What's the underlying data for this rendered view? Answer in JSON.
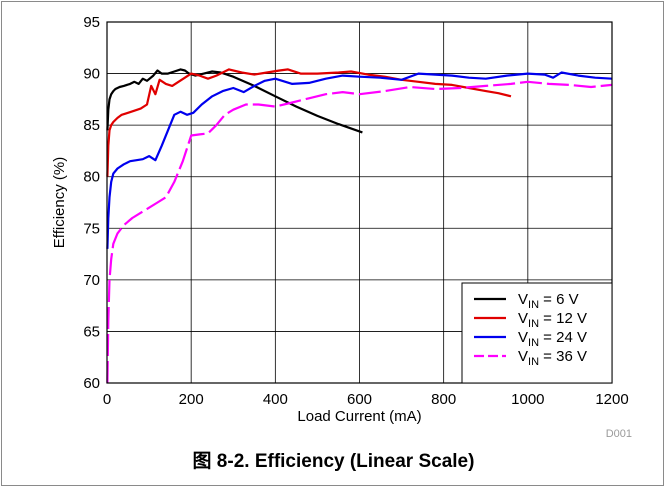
{
  "caption": "图 8-2. Efficiency (Linear Scale)",
  "figure_code": "D001",
  "chart_data": {
    "type": "line",
    "xlabel": "Load Current (mA)",
    "ylabel": "Efficiency (%)",
    "xlim": [
      0,
      1200
    ],
    "ylim": [
      60,
      95
    ],
    "xticks": [
      0,
      200,
      400,
      600,
      800,
      1000,
      1200
    ],
    "yticks": [
      60,
      65,
      70,
      75,
      80,
      85,
      90,
      95
    ],
    "grid": true,
    "legend_position": "bottom-right",
    "series": [
      {
        "name": "VIN = 6 V",
        "legend": {
          "main": "V",
          "sub": "IN",
          "rest": " = 6 V"
        },
        "color": "#000000",
        "dash": "solid",
        "x": [
          1,
          3,
          6,
          10,
          15,
          20,
          30,
          40,
          55,
          65,
          75,
          85,
          95,
          110,
          120,
          130,
          145,
          160,
          175,
          185,
          195,
          210,
          230,
          250,
          270,
          300,
          350,
          400,
          450,
          500,
          550,
          607
        ],
        "y": [
          84.5,
          86.5,
          87.5,
          88,
          88.3,
          88.5,
          88.7,
          88.8,
          89.0,
          89.2,
          89.0,
          89.5,
          89.3,
          89.8,
          90.3,
          90.0,
          90.0,
          90.2,
          90.4,
          90.3,
          90.0,
          89.8,
          90.0,
          90.2,
          90.1,
          89.7,
          88.8,
          87.8,
          86.8,
          85.9,
          85.1,
          84.3
        ]
      },
      {
        "name": "VIN = 12 V",
        "legend": {
          "main": "V",
          "sub": "IN",
          "rest": " = 12 V"
        },
        "color": "#e00000",
        "dash": "solid",
        "x": [
          1,
          3,
          6,
          10,
          15,
          25,
          35,
          50,
          65,
          80,
          95,
          105,
          115,
          125,
          140,
          155,
          170,
          185,
          200,
          220,
          240,
          260,
          290,
          320,
          350,
          380,
          410,
          430,
          460,
          500,
          550,
          580,
          620,
          660,
          700,
          740,
          780,
          820,
          860,
          900,
          930,
          960
        ],
        "y": [
          80,
          83,
          84.5,
          85,
          85.3,
          85.7,
          86.0,
          86.2,
          86.4,
          86.6,
          87.0,
          88.8,
          88.0,
          89.4,
          89.0,
          88.8,
          89.2,
          89.6,
          90.0,
          89.8,
          89.5,
          89.8,
          90.4,
          90.1,
          89.9,
          90.1,
          90.3,
          90.4,
          90.0,
          90.0,
          90.1,
          90.2,
          89.9,
          89.7,
          89.4,
          89.2,
          89.0,
          88.9,
          88.6,
          88.3,
          88.1,
          87.8
        ]
      },
      {
        "name": "VIN = 24 V",
        "legend": {
          "main": "V",
          "sub": "IN",
          "rest": " = 24 V"
        },
        "color": "#0000ee",
        "dash": "solid",
        "x": [
          1,
          3,
          6,
          10,
          15,
          25,
          40,
          55,
          70,
          85,
          100,
          115,
          130,
          145,
          160,
          175,
          190,
          205,
          225,
          250,
          275,
          300,
          325,
          350,
          375,
          400,
          440,
          480,
          520,
          560,
          600,
          650,
          700,
          740,
          780,
          820,
          860,
          900,
          950,
          1000,
          1040,
          1060,
          1080,
          1120,
          1160,
          1200
        ],
        "y": [
          73,
          76,
          78,
          79.5,
          80.3,
          80.8,
          81.2,
          81.5,
          81.6,
          81.7,
          82.0,
          81.6,
          83.0,
          84.5,
          86.0,
          86.3,
          86.0,
          86.2,
          87.0,
          87.8,
          88.3,
          88.6,
          88.2,
          88.8,
          89.3,
          89.5,
          89.0,
          89.1,
          89.5,
          89.8,
          89.7,
          89.6,
          89.4,
          90.0,
          89.9,
          89.8,
          89.6,
          89.5,
          89.8,
          90.0,
          89.9,
          89.6,
          90.1,
          89.8,
          89.6,
          89.5
        ]
      },
      {
        "name": "VIN = 36 V",
        "legend": {
          "main": "V",
          "sub": "IN",
          "rest": " = 36 V"
        },
        "color": "#ff00ff",
        "dash": "dashed",
        "x": [
          1,
          3,
          6,
          10,
          15,
          25,
          40,
          60,
          80,
          100,
          120,
          140,
          160,
          180,
          200,
          220,
          240,
          260,
          280,
          300,
          330,
          360,
          400,
          440,
          480,
          520,
          560,
          600,
          660,
          720,
          780,
          840,
          900,
          960,
          1000,
          1050,
          1100,
          1150,
          1200
        ],
        "y": [
          60,
          66,
          70,
          72,
          73.5,
          74.5,
          75.3,
          76.0,
          76.5,
          77.0,
          77.5,
          78.0,
          79.5,
          81.5,
          84.0,
          84.1,
          84.2,
          85.0,
          86.0,
          86.5,
          87.0,
          87.0,
          86.8,
          87.2,
          87.6,
          88.0,
          88.2,
          88.0,
          88.3,
          88.7,
          88.5,
          88.6,
          88.8,
          89.0,
          89.2,
          89.0,
          88.9,
          88.7,
          88.9
        ]
      }
    ]
  }
}
